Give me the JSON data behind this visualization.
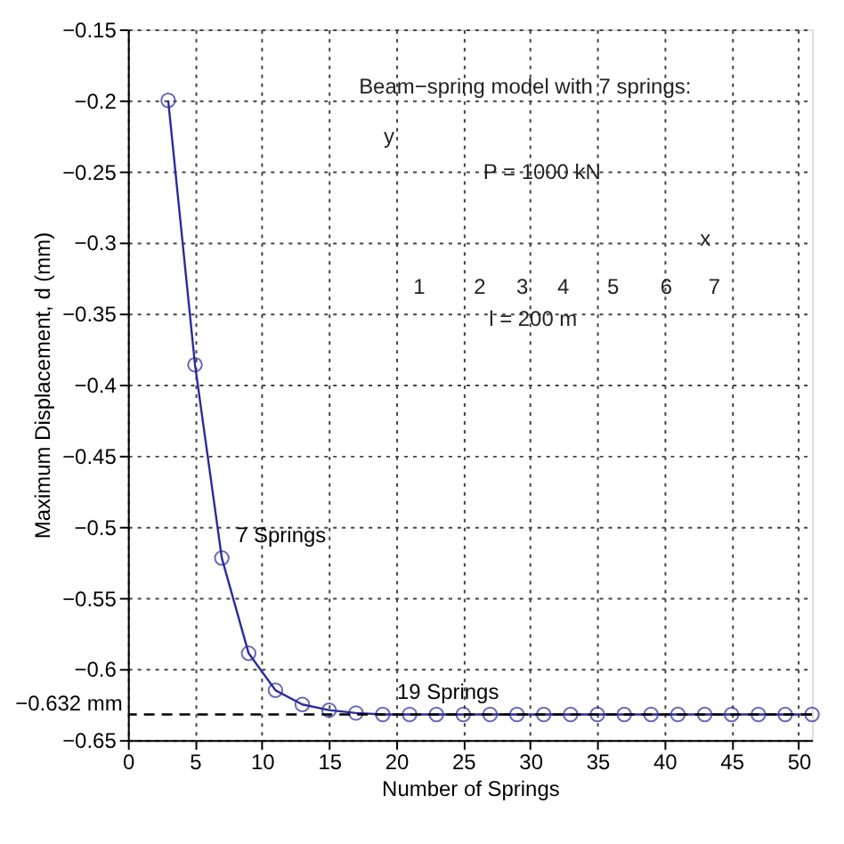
{
  "chart_data": {
    "type": "line",
    "xlabel": "Number of Springs",
    "ylabel": "Maximum Displacement, d (mm)",
    "x": [
      3,
      5,
      7,
      9,
      11,
      13,
      15,
      17,
      19,
      21,
      23,
      25,
      27,
      29,
      31,
      33,
      35,
      37,
      39,
      41,
      43,
      45,
      47,
      49,
      51
    ],
    "series": [
      {
        "color": "#2b2b9b",
        "values": [
          -0.2,
          -0.386,
          -0.522,
          -0.589,
          -0.615,
          -0.625,
          -0.629,
          -0.631,
          -0.632,
          -0.632,
          -0.632,
          -0.632,
          -0.632,
          -0.632,
          -0.632,
          -0.632,
          -0.632,
          -0.632,
          -0.632,
          -0.632,
          -0.632,
          -0.632,
          -0.632,
          -0.632,
          -0.632
        ]
      }
    ],
    "marker": "circle",
    "line_style": "solid",
    "grid": true,
    "xlim": [
      0,
      51
    ],
    "xticks": [
      0,
      5,
      10,
      15,
      20,
      25,
      30,
      35,
      40,
      45,
      50
    ],
    "ylim": [
      -0.65,
      -0.15
    ],
    "yticks": [
      -0.65,
      -0.6,
      -0.55,
      -0.5,
      -0.45,
      -0.4,
      -0.35,
      -0.3,
      -0.25,
      -0.2,
      -0.15
    ],
    "ref_lines": [
      {
        "axis": "y",
        "value": -0.632,
        "label": "−0.632 mm",
        "color": "#000000",
        "line_style": "dashed"
      }
    ],
    "annotations": [
      {
        "text": "7 Springs",
        "x": 7,
        "y": -0.522
      },
      {
        "text": "19 Springs",
        "x": 19,
        "y": -0.632
      },
      "Beam−spring model with 7 springs:",
      "y",
      "P = 1000 kN",
      "x",
      "1",
      "2",
      "3",
      "4",
      "5",
      "6",
      "7",
      "l = 200 m"
    ]
  }
}
